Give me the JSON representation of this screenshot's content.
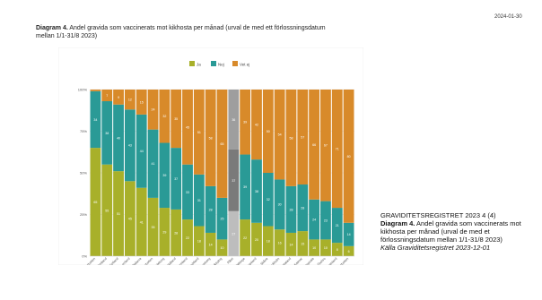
{
  "date": "2024-01-30",
  "title": {
    "bold": "Diagram 4.",
    "text": " Andel gravida som vaccinerats mot kikhosta per månad (urval de med ett förlossningsdatum mellan 1/1-31/8 2023)"
  },
  "caption": {
    "line1": "GRAVIDITETSREGISTRET 2023 4 (4)",
    "bold": "Diagram 4.",
    "text": " Andel gravida som vaccinerats mot kikhosta per månad (urval de med et förlossningsdatum mellan 1/1-31/8 2023)",
    "source": "Källa Graviditetsregistret 2023-12-01"
  },
  "colors": {
    "ja": "#a8b02a",
    "nej": "#2a9a96",
    "vet_ej": "#d88a2a",
    "riket_ja": "#bdbdbd",
    "riket_nej": "#7a7a7a",
    "riket_vet_ej": "#9e9e9e"
  },
  "chart_data": {
    "type": "bar",
    "stacked": true,
    "legend": [
      "Ja",
      "Nej",
      "Vet ej"
    ],
    "legend_position": "top",
    "ytick_labels": [
      "0%",
      "25%",
      "50%",
      "75%",
      "100%"
    ],
    "ylim": [
      0,
      100
    ],
    "categories": [
      "Norrbotten",
      "Jämtland",
      "Gotland",
      "Västernorrland",
      "Dalarna",
      "Västerbotten",
      "Gävleborg",
      "Halland",
      "Värmland",
      "Östergötland",
      "Kronoberg",
      "Jönköping",
      "Riket",
      "Blekinge",
      "Södermanland",
      "Skåne",
      "Stockholm",
      "Västra Götaland",
      "Kalmar",
      "Uppsala",
      "Örebro",
      "Västmanland",
      "Norrbotten2"
    ],
    "category_labels": [
      "Norrbotten",
      "Jämtland",
      "Gotland",
      "Västernorrland",
      "Dalarna",
      "Västerbotten",
      "Gävleborg",
      "Halland",
      "Värmland",
      "Östergötland",
      "Kronoberg",
      "Jönköping",
      "Riket",
      "Blekinge",
      "Södermanland",
      "Skåne",
      "Stockholm",
      "Västra Götaland",
      "Kalmar",
      "Uppsala",
      "Örebro",
      "Västmanland",
      "Norrbotten"
    ],
    "series": [
      {
        "name": "Ja",
        "values": [
          65,
          55,
          51,
          45,
          41,
          35,
          29,
          28,
          22,
          18,
          14,
          10,
          27,
          22,
          20,
          18,
          16,
          14,
          15,
          10,
          10,
          8,
          6
        ]
      },
      {
        "name": "Nej",
        "values": [
          34,
          38,
          40,
          43,
          44,
          41,
          39,
          37,
          33,
          31,
          28,
          25,
          37,
          39,
          38,
          32,
          30,
          28,
          28,
          24,
          23,
          21,
          14
        ]
      },
      {
        "name": "Vet ej",
        "values": [
          1,
          7,
          9,
          12,
          15,
          24,
          32,
          35,
          45,
          51,
          58,
          65,
          36,
          39,
          42,
          50,
          54,
          58,
          57,
          66,
          67,
          71,
          80
        ]
      }
    ],
    "bar_labels": {
      "ja": [
        "65",
        "55",
        "51",
        "45",
        "41",
        "35",
        "29",
        "28",
        "22",
        "18",
        "14",
        "10",
        "27",
        "22",
        "20",
        "18",
        "16",
        "14",
        "15",
        "10",
        "10",
        "8",
        "6"
      ],
      "nej": [
        "34",
        "38",
        "40",
        "43",
        "44",
        "41",
        "39",
        "37",
        "33",
        "31",
        "28",
        "25",
        "37",
        "39",
        "38",
        "32",
        "30",
        "28",
        "28",
        "24",
        "23",
        "21",
        "14"
      ],
      "vet_ej": [
        "1",
        "7",
        "9",
        "12",
        "15",
        "24",
        "32",
        "35",
        "45",
        "51",
        "58",
        "65",
        "36",
        "39",
        "42",
        "50",
        "54",
        "58",
        "57",
        "66",
        "67",
        "71",
        "80"
      ]
    }
  }
}
